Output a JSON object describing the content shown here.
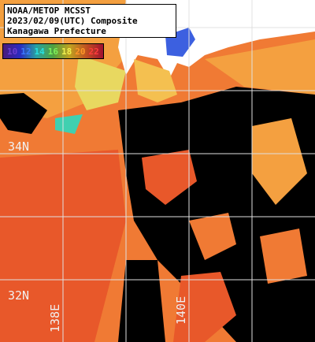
{
  "header": {
    "lines": [
      "NOAA/METOP MCSST",
      "2023/02/09(UTC) Composite",
      "Kanagawa Prefecture"
    ]
  },
  "legend": {
    "items": [
      {
        "label": "10",
        "color": "#6a3cd0"
      },
      {
        "label": "12",
        "color": "#3c78ff"
      },
      {
        "label": "14",
        "color": "#28e0e0"
      },
      {
        "label": "16",
        "color": "#7cf05a"
      },
      {
        "label": "18",
        "color": "#f0f050"
      },
      {
        "label": "20",
        "color": "#ff9628"
      },
      {
        "label": "22",
        "color": "#ff3c3c"
      }
    ]
  },
  "grid_labels": {
    "lat": [
      "34N",
      "32N"
    ],
    "lon": [
      "138E",
      "140E"
    ]
  }
}
